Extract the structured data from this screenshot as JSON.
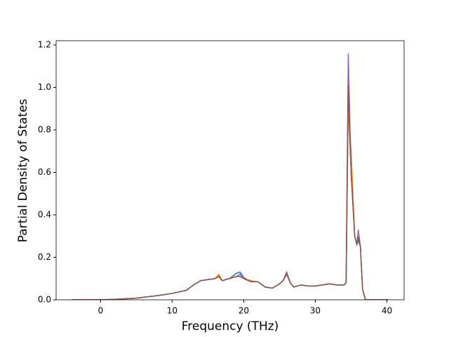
{
  "chart_data": {
    "type": "line",
    "xlabel": "Frequency (THz)",
    "ylabel": "Partial Density of States",
    "x": [
      -4,
      0,
      2,
      5,
      8,
      10,
      12,
      13,
      14,
      15,
      16,
      16.5,
      17,
      18,
      19,
      19.5,
      20,
      21,
      22,
      23,
      24,
      25,
      25.5,
      26,
      26.5,
      27,
      28,
      29,
      30,
      31,
      32,
      33,
      34,
      34.3,
      34.6,
      35,
      35.5,
      35.8,
      36,
      36.3,
      36.6,
      37,
      40.2
    ],
    "series": [
      {
        "color": "#1f77b4",
        "values": [
          0,
          0,
          0.002,
          0.008,
          0.02,
          0.03,
          0.045,
          0.07,
          0.09,
          0.095,
          0.1,
          0.11,
          0.09,
          0.1,
          0.125,
          0.13,
          0.105,
          0.085,
          0.085,
          0.06,
          0.055,
          0.075,
          0.09,
          0.12,
          0.08,
          0.06,
          0.07,
          0.065,
          0.065,
          0.07,
          0.075,
          0.07,
          0.07,
          0.08,
          0.95,
          0.6,
          0.3,
          0.26,
          0.28,
          0.25,
          0.05,
          0,
          0
        ]
      },
      {
        "color": "#ff7f0e",
        "values": [
          0,
          0,
          0.002,
          0.008,
          0.02,
          0.03,
          0.045,
          0.07,
          0.09,
          0.095,
          0.1,
          0.12,
          0.09,
          0.1,
          0.11,
          0.12,
          0.1,
          0.09,
          0.085,
          0.06,
          0.055,
          0.075,
          0.09,
          0.12,
          0.08,
          0.06,
          0.07,
          0.065,
          0.065,
          0.07,
          0.075,
          0.07,
          0.07,
          0.08,
          0.9,
          0.7,
          0.3,
          0.26,
          0.3,
          0.25,
          0.05,
          0,
          0
        ]
      },
      {
        "color": "#9467bd",
        "values": [
          0,
          0,
          0.002,
          0.008,
          0.02,
          0.03,
          0.045,
          0.07,
          0.09,
          0.095,
          0.1,
          0.11,
          0.09,
          0.1,
          0.11,
          0.12,
          0.1,
          0.085,
          0.085,
          0.06,
          0.055,
          0.075,
          0.09,
          0.12,
          0.08,
          0.06,
          0.07,
          0.065,
          0.065,
          0.07,
          0.075,
          0.07,
          0.07,
          0.08,
          1.16,
          0.6,
          0.3,
          0.26,
          0.33,
          0.25,
          0.05,
          0,
          0
        ]
      },
      {
        "color": "#8c564b",
        "values": [
          0,
          0,
          0.002,
          0.008,
          0.02,
          0.03,
          0.045,
          0.07,
          0.09,
          0.095,
          0.1,
          0.11,
          0.09,
          0.1,
          0.11,
          0.11,
          0.1,
          0.085,
          0.085,
          0.06,
          0.055,
          0.075,
          0.09,
          0.13,
          0.08,
          0.06,
          0.07,
          0.065,
          0.065,
          0.07,
          0.075,
          0.07,
          0.07,
          0.08,
          1.01,
          0.6,
          0.3,
          0.26,
          0.3,
          0.25,
          0.05,
          0,
          0
        ]
      }
    ],
    "xlim": [
      -6.2,
      42.4
    ],
    "ylim": [
      0,
      1.22
    ],
    "xticks": [
      0,
      10,
      20,
      30,
      40
    ],
    "yticks": [
      {
        "value": 0,
        "label": "0.0"
      },
      0.2,
      0.4,
      0.6,
      0.8,
      {
        "value": 1,
        "label": "1.0"
      },
      1.2
    ],
    "grid": false
  }
}
